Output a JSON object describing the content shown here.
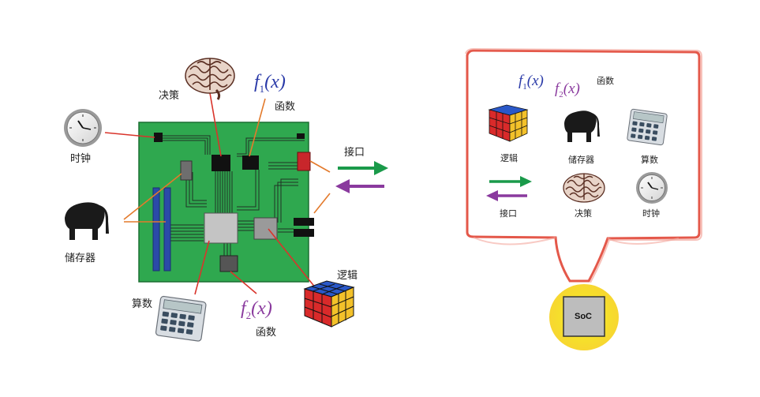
{
  "left": {
    "labels": {
      "clock": "时钟",
      "decision": "决策",
      "function": "函数",
      "interface": "接口",
      "storage": "储存器",
      "logic": "逻辑",
      "arithmetic": "算数",
      "function2": "函数"
    },
    "formulas": {
      "f1_base": "f",
      "f1_sub": "1",
      "f1_arg": "(x)",
      "f2_base": "f",
      "f2_sub": "2",
      "f2_arg": "(x)"
    }
  },
  "right": {
    "labels": {
      "function": "函数",
      "logic": "逻辑",
      "storage": "储存器",
      "arithmetic": "算数",
      "interface": "接口",
      "decision": "决策",
      "clock": "时钟"
    },
    "formulas": {
      "f1_base": "f",
      "f1_sub": "1",
      "f1_arg": "(x)",
      "f2_base": "f",
      "f2_sub": "2",
      "f2_arg": "(x)"
    },
    "soc": "SoC"
  },
  "colors": {
    "board": "#2fa84f",
    "board_dark": "#1f7a36",
    "connector": "#e37a2c",
    "pointer": "#d9342b",
    "arrow_right": "#1a9a4a",
    "arrow_left": "#8a3a9e",
    "bubble_border": "#e4584a",
    "soc_glow": "#f6e22a",
    "ram": "#2b4aa8",
    "chip_gray": "#bdbdbd",
    "chip_dark": "#222222"
  }
}
